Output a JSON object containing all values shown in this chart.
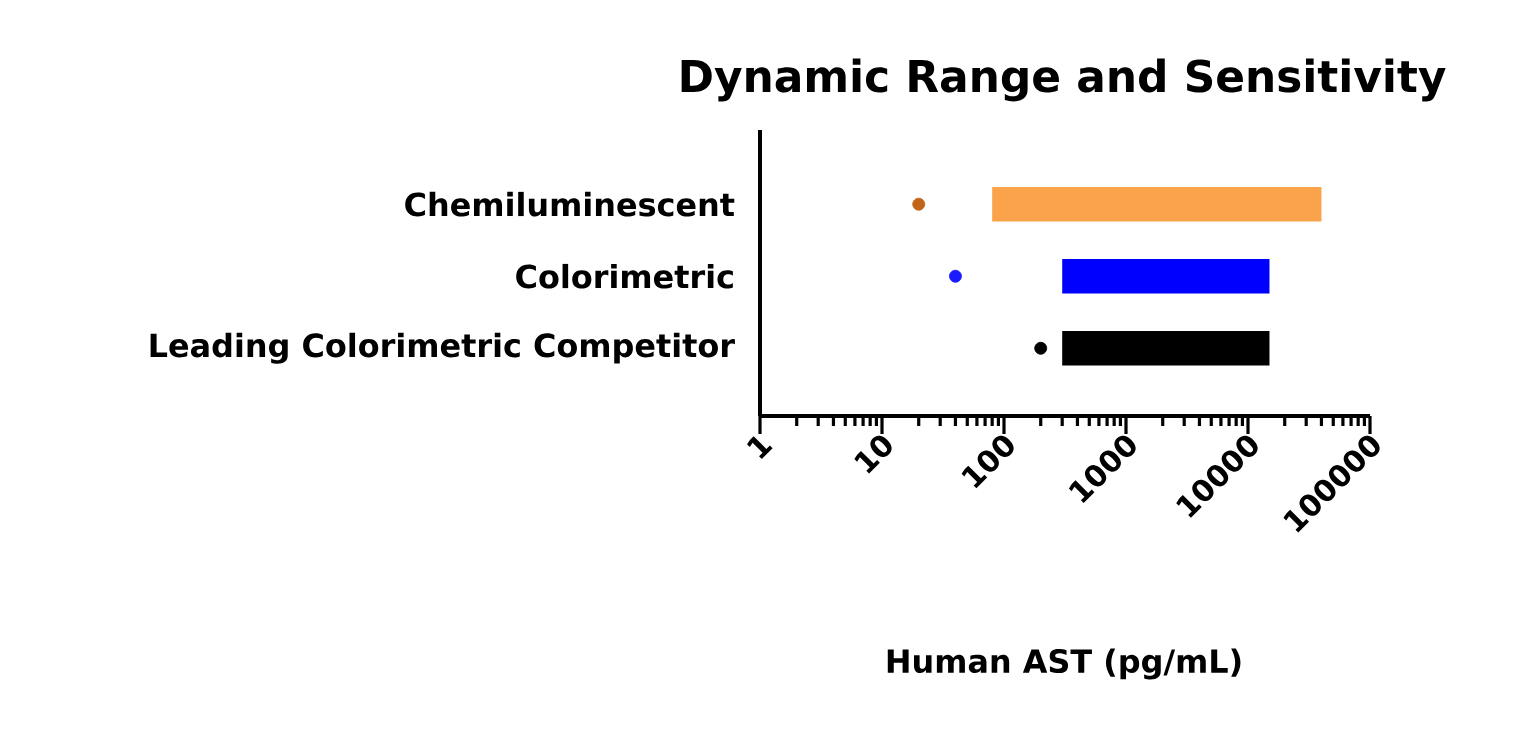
{
  "chart_data": {
    "type": "bar",
    "orientation": "horizontal",
    "title": "Dynamic Range and Sensitivity",
    "xlabel": "Human AST (pg/mL)",
    "categories": [
      "Chemiluminescent",
      "Colorimetric",
      "Leading Colorimetric Competitor"
    ],
    "series": [
      {
        "values": [
          39920,
          14700,
          14700
        ],
        "base": [
          80,
          300,
          300
        ],
        "colors": [
          "#fba34a",
          "#0000ff",
          "#000000"
        ]
      },
      {
        "type": "scatter",
        "values": [
          20,
          40,
          200
        ],
        "colors": [
          "#c0651a",
          "#1a1aff",
          "#000000"
        ],
        "marker": "circle"
      }
    ],
    "log": "x",
    "xlim": [
      1,
      100000
    ],
    "xticks": [
      1,
      10,
      100,
      1000,
      10000,
      100000
    ],
    "grid": false
  }
}
